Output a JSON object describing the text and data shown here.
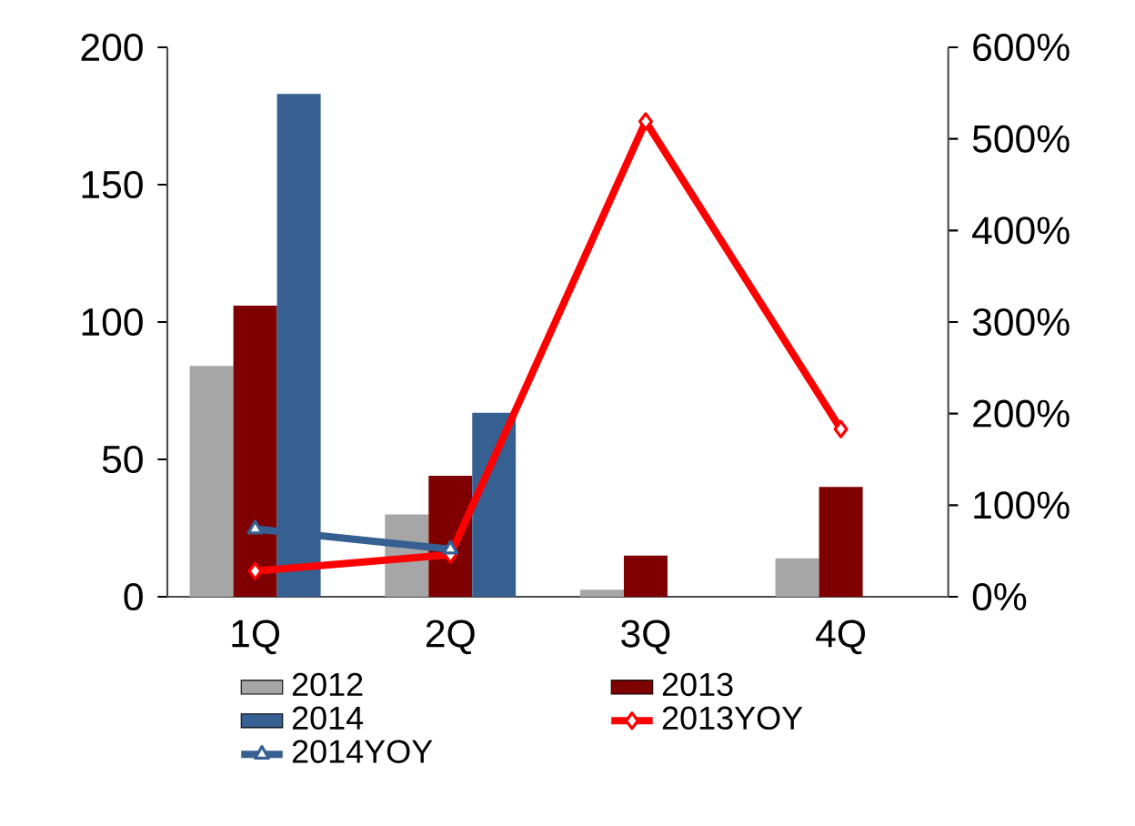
{
  "chart_data": {
    "type": "bar",
    "categories": [
      "1Q",
      "2Q",
      "3Q",
      "4Q"
    ],
    "series": [
      {
        "name": "2012",
        "color": "#a6a6a6",
        "values": [
          84,
          30,
          2.6,
          14
        ]
      },
      {
        "name": "2013",
        "color": "#7f0000",
        "values": [
          106,
          44,
          15,
          40
        ]
      },
      {
        "name": "2014",
        "color": "#376092",
        "values": [
          183,
          67,
          null,
          null
        ]
      },
      {
        "name": "2013YOY",
        "type": "line",
        "axis": "y2",
        "color": "#ff0000",
        "marker": "diamond",
        "line_style": "solid",
        "values": [
          28,
          46,
          519,
          183
        ]
      },
      {
        "name": "2014YOY",
        "type": "line",
        "axis": "y2",
        "color": "#376092",
        "marker": "triangle",
        "line_style": "solid",
        "values": [
          74,
          52,
          null,
          null
        ]
      }
    ],
    "ylim": [
      0,
      200
    ],
    "yticks": [
      0,
      50,
      100,
      150,
      200
    ],
    "y2lim": [
      0,
      600
    ],
    "y2ticks": [
      {
        "value": 0,
        "label": "0%"
      },
      {
        "value": 100,
        "label": "100%"
      },
      {
        "value": 200,
        "label": "200%"
      },
      {
        "value": 300,
        "label": "300%"
      },
      {
        "value": 400,
        "label": "400%"
      },
      {
        "value": 500,
        "label": "500%"
      },
      {
        "value": 600,
        "label": "600%"
      }
    ],
    "grid": false,
    "legend": "bottom"
  }
}
